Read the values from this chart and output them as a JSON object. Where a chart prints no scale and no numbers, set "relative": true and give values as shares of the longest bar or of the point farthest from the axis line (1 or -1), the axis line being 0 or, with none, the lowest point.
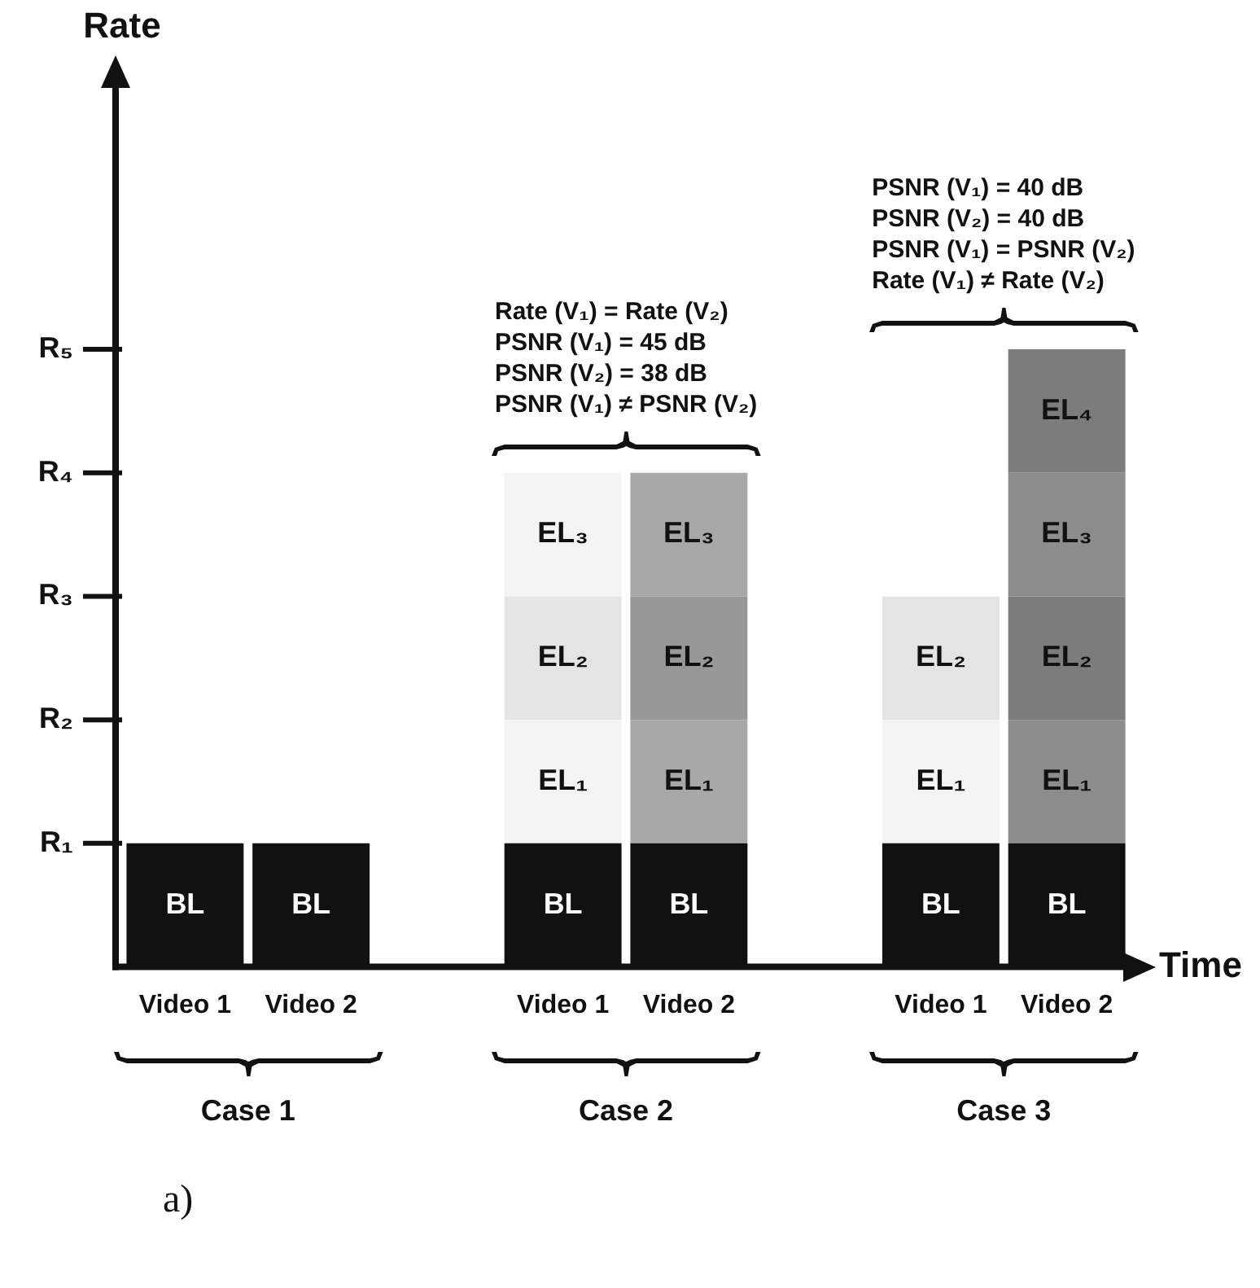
{
  "chart_data": {
    "type": "bar",
    "stacked": true,
    "relative": true,
    "xlabel": "Time",
    "categories": [
      "Video 1",
      "Video 2",
      null,
      "Video 1",
      "Video 2",
      null,
      "Video 1",
      "Video 2"
    ],
    "series": [
      {
        "name": "BL",
        "color": "#111111",
        "values": [
          0.2,
          0.2,
          null,
          0.2,
          0.2,
          null,
          0.2,
          0.2
        ]
      },
      {
        "name": "EL₁",
        "colors": [
          "#f4f4f4",
          "#a8a8a8",
          "#f4f4f4",
          "#f4f4f4",
          "#a8a8a8",
          "#f4f4f4",
          "#f4f4f4",
          "#8c8c8c"
        ],
        "values": [
          null,
          null,
          null,
          0.2,
          0.2,
          null,
          0.2,
          0.2
        ]
      },
      {
        "name": "EL₂",
        "colors": [
          "#e4e4e4",
          "#989898",
          "#e4e4e4",
          "#e4e4e4",
          "#989898",
          "#e4e4e4",
          "#e4e4e4",
          "#7c7c7c"
        ],
        "values": [
          null,
          null,
          null,
          0.2,
          0.2,
          null,
          0.2,
          0.2
        ]
      },
      {
        "name": "EL₃",
        "colors": [
          "#f4f4f4",
          "#a8a8a8",
          "#f4f4f4",
          "#f4f4f4",
          "#a8a8a8",
          "#f4f4f4",
          "#f4f4f4",
          "#8c8c8c"
        ],
        "values": [
          null,
          null,
          null,
          0.2,
          0.2,
          null,
          null,
          0.2
        ]
      },
      {
        "name": "EL₄",
        "colors": [
          "#e4e4e4",
          "#989898",
          "#e4e4e4",
          "#e4e4e4",
          "#989898",
          "#e4e4e4",
          "#e4e4e4",
          "#7c7c7c"
        ],
        "values": [
          null,
          null,
          null,
          null,
          null,
          null,
          null,
          0.2
        ]
      }
    ],
    "annotations": [
      "Rate (V₁) = Rate (V₂)\nPSNR (V₁) = 45 dB\nPSNR (V₂) = 38 dB\nPSNR (V₁) ≠ PSNR (V₂)",
      "PSNR (V₁) = 40 dB\nPSNR (V₂) = 40 dB\nPSNR (V₁) = PSNR (V₂)\nRate (V₁) ≠ Rate (V₂)",
      "Case 1",
      "Case 2",
      "Case 3",
      "a)",
      "Rate",
      "R₁",
      "R₂",
      "R₃",
      "R₄",
      "R₅"
    ]
  }
}
